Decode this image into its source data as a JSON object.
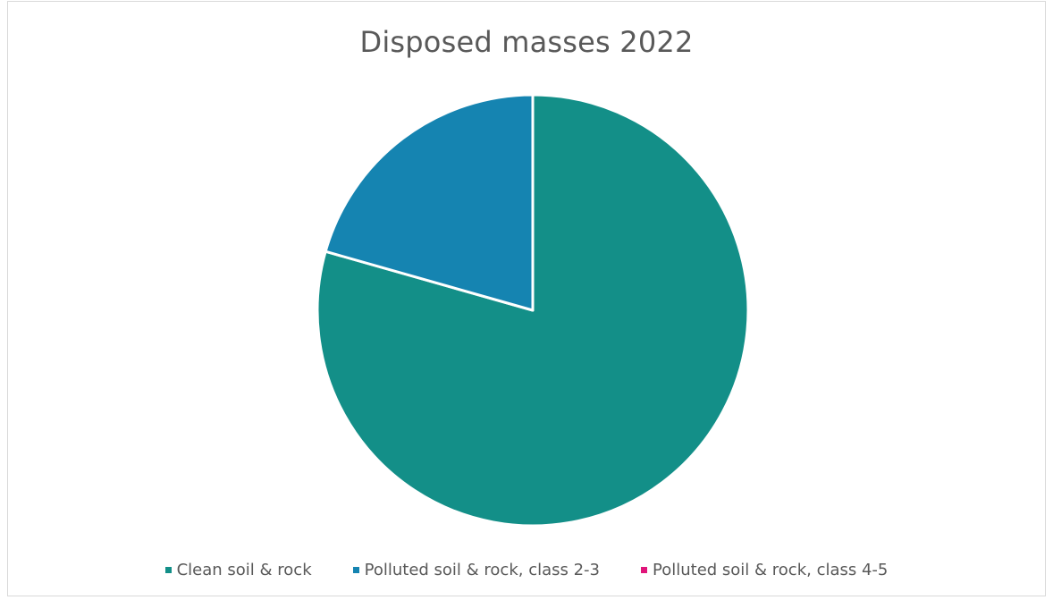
{
  "chart_data": {
    "type": "pie",
    "title": "Disposed masses 2022",
    "series": [
      {
        "categories": [
          "Clean soil & rock",
          "Polluted soil & rock, class 2-3",
          "Polluted soil & rock, class 4-5"
        ],
        "values": [
          79.4,
          20.6,
          0.0
        ],
        "colors": [
          "#138f88",
          "#1584b1",
          "#e0157a"
        ]
      }
    ],
    "legend": "bottom"
  }
}
